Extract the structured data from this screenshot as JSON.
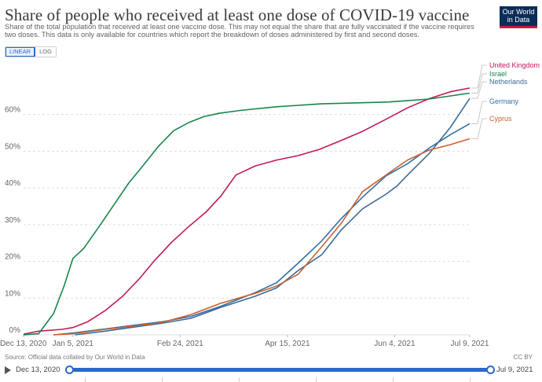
{
  "header": {
    "title": "Share of people who received at least one dose of COVID-19 vaccine",
    "subtitle": "Share of the total population that received at least one vaccine dose. This may not equal the share that are fully vaccinated if the vaccine requires two doses. This data is only available for countries which report the breakdown of doses administered by first and second doses.",
    "logo_line1": "Our World",
    "logo_line2": "in Data"
  },
  "scale_toggle": {
    "linear_label": "LINEAR",
    "log_label": "LOG",
    "selected": "LINEAR"
  },
  "footer": {
    "source": "Source: Official data collated by Our World in Data",
    "license": "CC BY"
  },
  "timeline": {
    "start_label": "Dec 13, 2020",
    "end_label": "Jul 9, 2021",
    "selected_range": [
      "2020-12-13",
      "2021-07-09"
    ]
  },
  "colors": {
    "accent": "#2a6ac7",
    "grid": "#dddddd",
    "axis_text": "#666666"
  },
  "chart_data": {
    "type": "line",
    "xlabel": "",
    "ylabel": "",
    "x_ticks": [
      "Dec 13, 2020",
      "Jan 5, 2021",
      "Feb 24, 2021",
      "Apr 15, 2021",
      "Jun 4, 2021",
      "Jul 9, 2021"
    ],
    "x_tick_dates": [
      "2020-12-13",
      "2021-01-05",
      "2021-02-24",
      "2021-04-15",
      "2021-06-04",
      "2021-07-09"
    ],
    "y_ticks": [
      "0%",
      "10%",
      "20%",
      "30%",
      "40%",
      "50%",
      "60%"
    ],
    "y_tick_values": [
      0,
      10,
      20,
      30,
      40,
      50,
      60
    ],
    "xlim": [
      "2020-12-13",
      "2021-07-09"
    ],
    "ylim": [
      0,
      68
    ],
    "grid": "horizontal-dashed",
    "legend": "right-end-labels",
    "series": [
      {
        "name": "United Kingdom",
        "color": "#c2185b",
        "points": [
          [
            "2020-12-13",
            0.2
          ],
          [
            "2020-12-20",
            1.0
          ],
          [
            "2020-12-31",
            1.5
          ],
          [
            "2021-01-05",
            2.0
          ],
          [
            "2021-01-12",
            3.6
          ],
          [
            "2021-01-20",
            6.6
          ],
          [
            "2021-01-28",
            10.4
          ],
          [
            "2021-02-05",
            15.3
          ],
          [
            "2021-02-12",
            20.2
          ],
          [
            "2021-02-20",
            25.2
          ],
          [
            "2021-02-28",
            29.5
          ],
          [
            "2021-03-08",
            33.4
          ],
          [
            "2021-03-15",
            37.8
          ],
          [
            "2021-03-22",
            43.5
          ],
          [
            "2021-03-31",
            46.0
          ],
          [
            "2021-04-10",
            47.6
          ],
          [
            "2021-04-20",
            48.8
          ],
          [
            "2021-04-30",
            50.5
          ],
          [
            "2021-05-10",
            52.9
          ],
          [
            "2021-05-20",
            55.4
          ],
          [
            "2021-05-31",
            58.7
          ],
          [
            "2021-06-10",
            61.8
          ],
          [
            "2021-06-20",
            64.3
          ],
          [
            "2021-06-30",
            66.2
          ],
          [
            "2021-07-09",
            67.2
          ]
        ]
      },
      {
        "name": "Israel",
        "color": "#18864b",
        "points": [
          [
            "2020-12-13",
            0.0
          ],
          [
            "2020-12-20",
            0.3
          ],
          [
            "2020-12-27",
            5.8
          ],
          [
            "2021-01-01",
            13.5
          ],
          [
            "2021-01-05",
            20.8
          ],
          [
            "2021-01-10",
            23.5
          ],
          [
            "2021-01-17",
            29.3
          ],
          [
            "2021-01-24",
            35.3
          ],
          [
            "2021-01-31",
            41.3
          ],
          [
            "2021-02-07",
            46.3
          ],
          [
            "2021-02-14",
            51.4
          ],
          [
            "2021-02-21",
            55.6
          ],
          [
            "2021-02-28",
            57.8
          ],
          [
            "2021-03-07",
            59.4
          ],
          [
            "2021-03-14",
            60.3
          ],
          [
            "2021-03-24",
            61.1
          ],
          [
            "2021-04-10",
            62.1
          ],
          [
            "2021-05-01",
            62.9
          ],
          [
            "2021-06-01",
            63.4
          ],
          [
            "2021-06-20",
            64.2
          ],
          [
            "2021-07-09",
            65.8
          ]
        ]
      },
      {
        "name": "Netherlands",
        "color": "#3e6b96",
        "points": [
          [
            "2021-01-06",
            0.0
          ],
          [
            "2021-01-20",
            1.0
          ],
          [
            "2021-02-01",
            2.0
          ],
          [
            "2021-02-15",
            3.1
          ],
          [
            "2021-03-01",
            4.5
          ],
          [
            "2021-03-15",
            7.5
          ],
          [
            "2021-03-31",
            10.5
          ],
          [
            "2021-04-10",
            12.8
          ],
          [
            "2021-04-20",
            17.5
          ],
          [
            "2021-05-01",
            21.8
          ],
          [
            "2021-05-10",
            28.5
          ],
          [
            "2021-05-20",
            34.3
          ],
          [
            "2021-05-31",
            38.3
          ],
          [
            "2021-06-05",
            40.5
          ],
          [
            "2021-06-10",
            43.5
          ],
          [
            "2021-06-20",
            49.3
          ],
          [
            "2021-06-30",
            56.5
          ],
          [
            "2021-07-09",
            64.4
          ]
        ]
      },
      {
        "name": "Germany",
        "color": "#3070a8",
        "points": [
          [
            "2020-12-27",
            0.0
          ],
          [
            "2021-01-05",
            0.5
          ],
          [
            "2021-01-20",
            1.6
          ],
          [
            "2021-02-01",
            2.5
          ],
          [
            "2021-02-15",
            3.5
          ],
          [
            "2021-03-01",
            5.0
          ],
          [
            "2021-03-15",
            7.8
          ],
          [
            "2021-03-31",
            11.5
          ],
          [
            "2021-04-10",
            14.2
          ],
          [
            "2021-04-20",
            19.5
          ],
          [
            "2021-05-01",
            25.6
          ],
          [
            "2021-05-10",
            31.6
          ],
          [
            "2021-05-20",
            37.5
          ],
          [
            "2021-05-31",
            43.3
          ],
          [
            "2021-06-10",
            46.6
          ],
          [
            "2021-06-20",
            50.8
          ],
          [
            "2021-06-30",
            54.5
          ],
          [
            "2021-07-09",
            57.5
          ]
        ]
      },
      {
        "name": "Cyprus",
        "color": "#c9622f",
        "points": [
          [
            "2020-12-27",
            0.0
          ],
          [
            "2021-01-05",
            0.3
          ],
          [
            "2021-01-20",
            1.5
          ],
          [
            "2021-02-01",
            2.3
          ],
          [
            "2021-02-15",
            3.3
          ],
          [
            "2021-03-01",
            5.5
          ],
          [
            "2021-03-15",
            8.6
          ],
          [
            "2021-03-31",
            11.3
          ],
          [
            "2021-04-10",
            13.3
          ],
          [
            "2021-04-20",
            16.5
          ],
          [
            "2021-05-01",
            24.0
          ],
          [
            "2021-05-10",
            30.3
          ],
          [
            "2021-05-20",
            39.0
          ],
          [
            "2021-05-31",
            43.5
          ],
          [
            "2021-06-10",
            47.6
          ],
          [
            "2021-06-20",
            50.3
          ],
          [
            "2021-06-30",
            51.8
          ],
          [
            "2021-07-09",
            53.4
          ]
        ]
      }
    ]
  }
}
